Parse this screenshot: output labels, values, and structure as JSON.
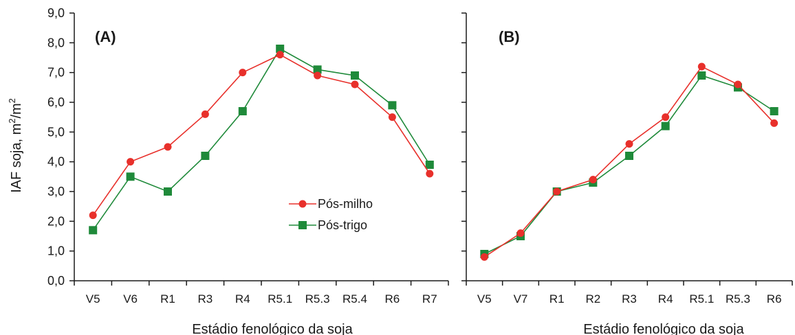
{
  "ylabel_main": "IAF soja, m",
  "ylabel_sup1": "2",
  "ylabel_mid": "/m",
  "ylabel_sup2": "2",
  "colors": {
    "milho": "#e8302b",
    "trigo": "#1f8a3a",
    "axis": "#1a1a1a"
  },
  "chart_data": [
    {
      "type": "line",
      "panel_label": "(A)",
      "xlabel": "Estádio fenológico da soja",
      "categories": [
        "V5",
        "V6",
        "R1",
        "R3",
        "R4",
        "R5.1",
        "R5.3",
        "R5.4",
        "R6",
        "R7"
      ],
      "ylim": [
        0,
        9
      ],
      "yticks": [
        "0,0",
        "1,0",
        "2,0",
        "3,0",
        "4,0",
        "5,0",
        "6,0",
        "7,0",
        "8,0",
        "9,0"
      ],
      "legend": {
        "placement": "center-right",
        "items": [
          "Pós-milho",
          "Pós-trigo"
        ]
      },
      "series": [
        {
          "name": "Pós-milho",
          "marker": "circle",
          "values": [
            2.2,
            4.0,
            4.5,
            5.6,
            7.0,
            7.6,
            6.9,
            6.6,
            5.5,
            3.6
          ]
        },
        {
          "name": "Pós-trigo",
          "marker": "square",
          "values": [
            1.7,
            3.5,
            3.0,
            4.2,
            5.7,
            7.8,
            7.1,
            6.9,
            5.9,
            3.9
          ]
        }
      ]
    },
    {
      "type": "line",
      "panel_label": "(B)",
      "xlabel": "Estádio fenológico da soja",
      "categories": [
        "V5",
        "V7",
        "R1",
        "R2",
        "R3",
        "R4",
        "R5.1",
        "R5.3",
        "R6"
      ],
      "ylim": [
        0,
        9
      ],
      "series": [
        {
          "name": "Pós-milho",
          "marker": "circle",
          "values": [
            0.8,
            1.6,
            3.0,
            3.4,
            4.6,
            5.5,
            7.2,
            6.6,
            5.3
          ]
        },
        {
          "name": "Pós-trigo",
          "marker": "square",
          "values": [
            0.9,
            1.5,
            3.0,
            3.3,
            4.2,
            5.2,
            6.9,
            6.5,
            5.7
          ]
        }
      ]
    }
  ]
}
